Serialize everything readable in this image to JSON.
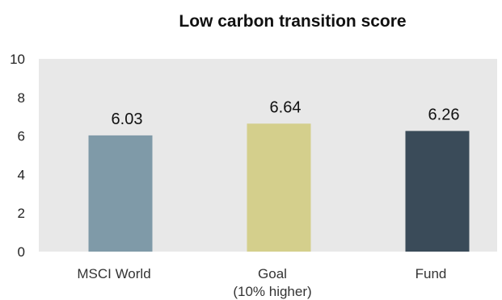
{
  "chart_data": {
    "type": "bar",
    "title": "Low carbon transition score",
    "categories": [
      "MSCI World",
      "Goal",
      "Fund"
    ],
    "category_sublabels": [
      "",
      "(10% higher)",
      ""
    ],
    "values": [
      6.03,
      6.64,
      6.26
    ],
    "value_labels": [
      "6.03",
      "6.64",
      "6.26"
    ],
    "xlabel": "",
    "ylabel": "",
    "ylim": [
      0,
      10
    ],
    "yticks": [
      "0",
      "2",
      "4",
      "6",
      "8",
      "10"
    ],
    "grid": false,
    "legend": "none",
    "colors": {
      "plot_background": "#e8e8e8",
      "bars": [
        "#7f9aa8",
        "#d4cf8c",
        "#3a4b59"
      ]
    }
  }
}
